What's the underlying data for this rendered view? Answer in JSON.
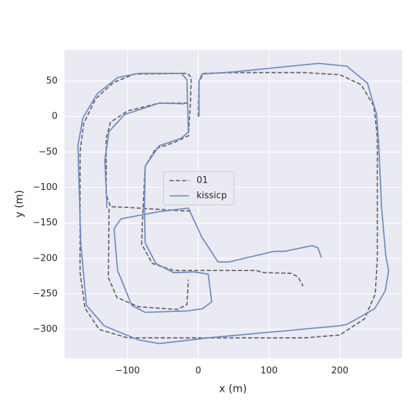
{
  "chart_data": {
    "type": "line",
    "xlabel": "x (m)",
    "ylabel": "y (m)",
    "xlim": [
      -189,
      288
    ],
    "ylim": [
      -341,
      94
    ],
    "xticks": [
      {
        "value": -100,
        "label": "−100"
      },
      0,
      100,
      200
    ],
    "yticks": [
      50,
      0,
      {
        "value": -50,
        "label": "−50"
      },
      {
        "value": -100,
        "label": "−100"
      },
      {
        "value": -150,
        "label": "−150"
      },
      {
        "value": -200,
        "label": "−200"
      },
      {
        "value": -250,
        "label": "−250"
      },
      {
        "value": -300,
        "label": "−300"
      }
    ],
    "grid": true,
    "legend": "center",
    "background": "#eaeaf2",
    "series": [
      {
        "name": "01",
        "color": "#666666",
        "linestyle": "dashed",
        "x": [
          0,
          1,
          8,
          50,
          150,
          200,
          230,
          248,
          253,
          253,
          250,
          235,
          200,
          150,
          -100,
          -140,
          -160,
          -167,
          -167,
          -162,
          -145,
          -120,
          -90,
          -15,
          -10,
          -11,
          -14,
          -35,
          -60,
          -75,
          -78,
          -79,
          -80,
          -65,
          -35,
          -10,
          14,
          82,
          92,
          131,
          141,
          148,
          null,
          -15,
          -55,
          -100,
          -124,
          -130,
          -130,
          -124,
          -100,
          -70,
          -20,
          -10,
          null,
          -126,
          -127,
          -115,
          -85,
          -30,
          -16,
          -14
        ],
        "values": [
          0,
          50,
          61,
          62,
          62,
          59,
          45,
          15,
          -30,
          -200,
          -250,
          -285,
          -308,
          -312,
          -312,
          -300,
          -270,
          -220,
          -50,
          -10,
          25,
          48,
          60,
          61,
          55,
          20,
          -27,
          -37,
          -45,
          -70,
          -130,
          -150,
          -180,
          -207,
          -217,
          -217,
          -217,
          -217,
          -220,
          -221,
          -226,
          -239,
          null,
          19,
          19,
          8,
          -8,
          -30,
          -110,
          -127,
          -128,
          -130,
          -133,
          -133,
          null,
          -130,
          -227,
          -255,
          -268,
          -272,
          -265,
          -230
        ]
      },
      {
        "name": "kissicp",
        "color": "#6b8cc4",
        "linestyle": "solid",
        "x": [
          1,
          1,
          5,
          50,
          100,
          170,
          210,
          239,
          252,
          255,
          259,
          265,
          269,
          264,
          249,
          210,
          200,
          112,
          14,
          -55,
          -84,
          -133,
          -158,
          -166,
          -170,
          -163,
          -143,
          -114,
          -84,
          -24,
          -16,
          -14,
          -25,
          -55,
          -75,
          -76,
          -75,
          -60,
          -35,
          -6,
          14,
          19,
          6,
          -16,
          -75,
          -94,
          -114,
          -119,
          -109,
          -55,
          -14,
          5,
          28,
          43,
          107,
          122,
          161,
          169,
          174,
          null,
          -20,
          -55,
          -104,
          -126,
          -132,
          -129
        ],
        "values": [
          0,
          50,
          60,
          63,
          68,
          75,
          71,
          47,
          3,
          -41,
          -129,
          -197,
          -217,
          -246,
          -271,
          -293,
          -295,
          -303,
          -312,
          -320,
          -315,
          -295,
          -266,
          -178,
          -41,
          -2,
          32,
          55,
          61,
          61,
          52,
          -22,
          -31,
          -41,
          -70,
          -129,
          -178,
          -207,
          -220,
          -219,
          -222,
          -261,
          -271,
          -274,
          -276,
          -266,
          -217,
          -158,
          -144,
          -134,
          -129,
          -170,
          -205,
          -205,
          -190,
          -190,
          -182,
          -185,
          -199,
          null,
          18,
          19,
          3,
          -21,
          -61,
          -129
        ]
      }
    ]
  }
}
